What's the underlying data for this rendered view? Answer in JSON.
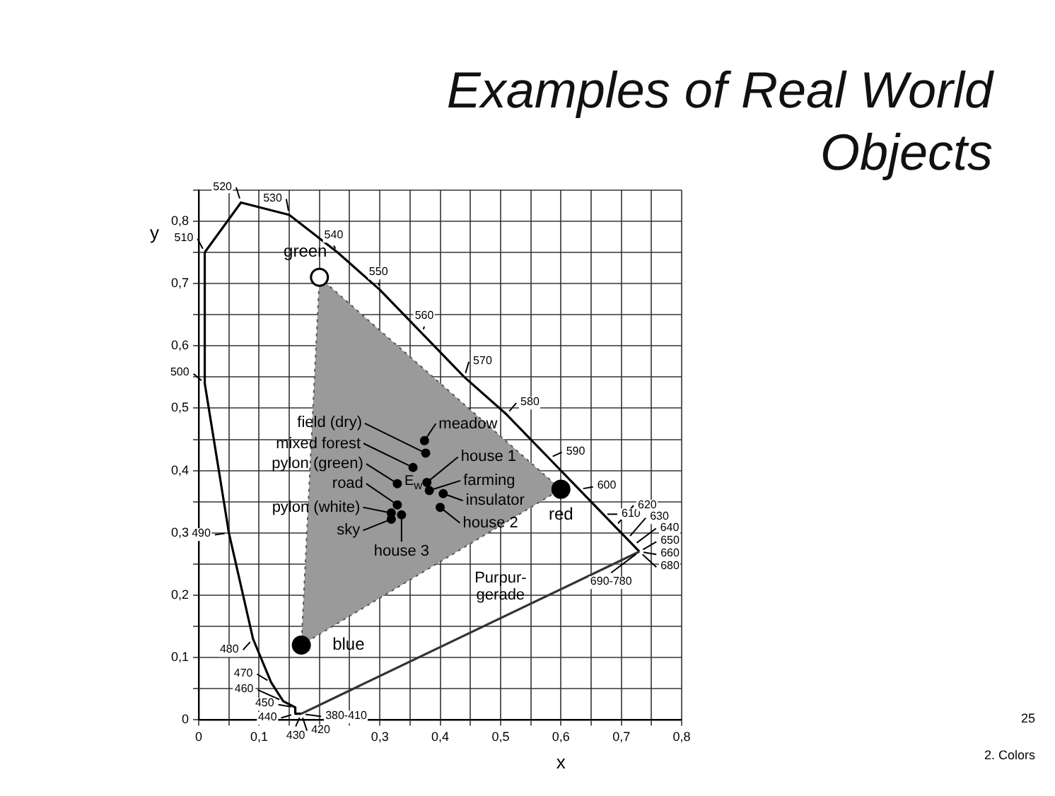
{
  "chart_data": {
    "type": "scatter",
    "title": "Examples of Real World Objects",
    "xlabel": "x",
    "ylabel": "y",
    "xlim": [
      0,
      0.8
    ],
    "ylim": [
      0,
      0.85
    ],
    "xticks": [
      0,
      {
        "value": 0.05,
        "label": null
      },
      {
        "value": 0.1,
        "label": "0,1"
      },
      {
        "value": 0.15,
        "label": null
      },
      {
        "value": 0.2,
        "label": null
      },
      {
        "value": 0.25,
        "label": null
      },
      {
        "value": 0.3,
        "label": "0,3"
      },
      {
        "value": 0.35,
        "label": null
      },
      {
        "value": 0.4,
        "label": "0,4"
      },
      {
        "value": 0.45,
        "label": null
      },
      {
        "value": 0.5,
        "label": "0,5"
      },
      {
        "value": 0.55,
        "label": null
      },
      {
        "value": 0.6,
        "label": "0,6"
      },
      {
        "value": 0.65,
        "label": null
      },
      {
        "value": 0.7,
        "label": "0,7"
      },
      {
        "value": 0.75,
        "label": null
      },
      {
        "value": 0.8,
        "label": "0,8"
      }
    ],
    "yticks": [
      0,
      {
        "value": 0.05,
        "label": null
      },
      {
        "value": 0.1,
        "label": "0,1"
      },
      {
        "value": 0.15,
        "label": null
      },
      {
        "value": 0.2,
        "label": "0,2"
      },
      {
        "value": 0.25,
        "label": null
      },
      {
        "value": 0.3,
        "label": "0,3"
      },
      {
        "value": 0.35,
        "label": null
      },
      {
        "value": 0.4,
        "label": "0,4"
      },
      {
        "value": 0.45,
        "label": null
      },
      {
        "value": 0.5,
        "label": "0,5"
      },
      {
        "value": 0.55,
        "label": null
      },
      {
        "value": 0.6,
        "label": "0,6"
      },
      {
        "value": 0.65,
        "label": null
      },
      {
        "value": 0.7,
        "label": "0,7"
      },
      {
        "value": 0.75,
        "label": null
      },
      {
        "value": 0.8,
        "label": "0,8"
      },
      {
        "value": 0.85,
        "label": null
      }
    ],
    "grid": true,
    "legend": false,
    "series": [
      {
        "type": "area",
        "color": "#9a9a9a",
        "line_style": "dotted",
        "marker": "none",
        "x": [
          0.2,
          0.6,
          0.17,
          0.2
        ],
        "values": [
          0.71,
          0.37,
          0.12,
          0.71
        ]
      },
      {
        "type": "line",
        "color": "#000000",
        "line_style": "solid",
        "marker": "none",
        "x": [
          0.17,
          0.17,
          0.17,
          0.16,
          0.16,
          0.14,
          0.12,
          0.09,
          0.05,
          0.01,
          0.01,
          0.07,
          0.15,
          0.23,
          0.3,
          0.37,
          0.44,
          0.51,
          0.58,
          0.63,
          0.67,
          0.69,
          0.71,
          0.72,
          0.73,
          0.73,
          0.73,
          0.73
        ],
        "values": [
          0.01,
          0.01,
          0.01,
          0.01,
          0.02,
          0.03,
          0.06,
          0.13,
          0.3,
          0.54,
          0.75,
          0.83,
          0.81,
          0.75,
          0.69,
          0.62,
          0.55,
          0.49,
          0.42,
          0.37,
          0.33,
          0.31,
          0.29,
          0.28,
          0.27,
          0.27,
          0.27,
          0.27
        ]
      },
      {
        "type": "line",
        "color": "#333333",
        "line_style": "solid",
        "marker": "none",
        "x": [
          0.73,
          0.17
        ],
        "values": [
          0.27,
          0.01
        ]
      },
      {
        "type": "scatter",
        "colors": [
          "#ffffff",
          "#000000",
          "#000000"
        ],
        "marker": "circle",
        "x": [
          0.2,
          0.6,
          0.17
        ],
        "values": [
          0.71,
          0.37,
          0.12
        ]
      },
      {
        "type": "scatter",
        "color": "#000000",
        "marker": "circle",
        "x": [
          0.376,
          0.355,
          0.329,
          0.329,
          0.319,
          0.319,
          0.374,
          0.378,
          0.382,
          0.405,
          0.4,
          0.336
        ],
        "values": [
          0.428,
          0.405,
          0.379,
          0.345,
          0.332,
          0.322,
          0.448,
          0.381,
          0.368,
          0.363,
          0.341,
          0.329
        ]
      }
    ],
    "annotations": [
      {
        "text": "380-410",
        "x": 0.17,
        "y": 0.01
      },
      {
        "text": "420",
        "x": 0.17,
        "y": 0.01
      },
      {
        "text": "430",
        "x": 0.17,
        "y": 0.01
      },
      {
        "text": "440",
        "x": 0.16,
        "y": 0.01
      },
      {
        "text": "450",
        "x": 0.16,
        "y": 0.02
      },
      {
        "text": "460",
        "x": 0.14,
        "y": 0.03
      },
      {
        "text": "470",
        "x": 0.12,
        "y": 0.06
      },
      {
        "text": "480",
        "x": 0.09,
        "y": 0.13
      },
      {
        "text": "490",
        "x": 0.05,
        "y": 0.3
      },
      {
        "text": "500",
        "x": 0.01,
        "y": 0.54
      },
      {
        "text": "510",
        "x": 0.01,
        "y": 0.75
      },
      {
        "text": "520",
        "x": 0.07,
        "y": 0.83
      },
      {
        "text": "530",
        "x": 0.15,
        "y": 0.81
      },
      {
        "text": "540",
        "x": 0.23,
        "y": 0.75
      },
      {
        "text": "550",
        "x": 0.3,
        "y": 0.69
      },
      {
        "text": "560",
        "x": 0.37,
        "y": 0.62
      },
      {
        "text": "570",
        "x": 0.44,
        "y": 0.55
      },
      {
        "text": "580",
        "x": 0.51,
        "y": 0.49
      },
      {
        "text": "590",
        "x": 0.58,
        "y": 0.42
      },
      {
        "text": "600",
        "x": 0.63,
        "y": 0.37
      },
      {
        "text": "610",
        "x": 0.67,
        "y": 0.33
      },
      {
        "text": "620",
        "x": 0.69,
        "y": 0.31
      },
      {
        "text": "630",
        "x": 0.71,
        "y": 0.29
      },
      {
        "text": "640",
        "x": 0.72,
        "y": 0.28
      },
      {
        "text": "650",
        "x": 0.73,
        "y": 0.27
      },
      {
        "text": "660",
        "x": 0.73,
        "y": 0.27
      },
      {
        "text": "680",
        "x": 0.73,
        "y": 0.27
      },
      {
        "text": "690-780",
        "x": 0.73,
        "y": 0.27
      },
      {
        "text": "field (dry)",
        "x": 0.376,
        "y": 0.428
      },
      {
        "text": "mixed forest",
        "x": 0.355,
        "y": 0.405
      },
      {
        "text": "pylon (green)",
        "x": 0.329,
        "y": 0.379
      },
      {
        "text": "road",
        "x": 0.329,
        "y": 0.345
      },
      {
        "text": "pylon (white)",
        "x": 0.319,
        "y": 0.332
      },
      {
        "text": "sky",
        "x": 0.319,
        "y": 0.322
      },
      {
        "text": "meadow",
        "x": 0.374,
        "y": 0.448
      },
      {
        "text": "house 1",
        "x": 0.378,
        "y": 0.381
      },
      {
        "text": "farming",
        "x": 0.382,
        "y": 0.368
      },
      {
        "text": "insulator",
        "x": 0.405,
        "y": 0.363
      },
      {
        "text": "house 2",
        "x": 0.4,
        "y": 0.341
      },
      {
        "text": "house 3",
        "x": 0.336,
        "y": 0.329
      },
      "E$_{w}$",
      {
        "text": "green",
        "x": 0.2,
        "y": 0.71
      },
      {
        "text": "red",
        "x": 0.6,
        "y": 0.37
      },
      {
        "text": "blue",
        "x": 0.17,
        "y": 0.12
      },
      {
        "text": "Purpur-\ngerade",
        "x": 0.5,
        "y": 0.163
      },
      "25",
      "2. Colors"
    ]
  }
}
